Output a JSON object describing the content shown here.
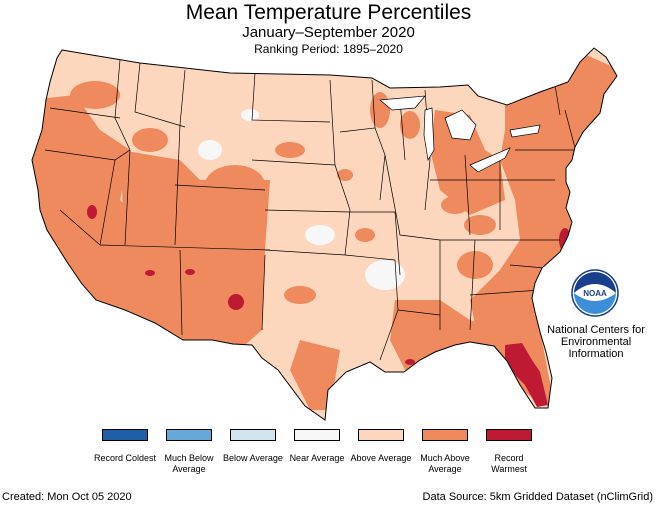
{
  "header": {
    "title": "Mean Temperature Percentiles",
    "subtitle": "January–September 2020",
    "ranking_period": "Ranking Period: 1895–2020"
  },
  "legend": [
    {
      "label": "Record Coldest",
      "color": "#1f5fa6"
    },
    {
      "label": "Much Below Average",
      "color": "#67a9d6"
    },
    {
      "label": "Below Average",
      "color": "#d2e4f0"
    },
    {
      "label": "Near Average",
      "color": "#f7f7f7"
    },
    {
      "label": "Above Average",
      "color": "#fdd7bd"
    },
    {
      "label": "Much Above Average",
      "color": "#ef8a5e"
    },
    {
      "label": "Record Warmest",
      "color": "#bf1a33"
    }
  ],
  "logo": {
    "text": "NOAA",
    "org_line1": "National Centers for",
    "org_line2": "Environmental",
    "org_line3": "Information"
  },
  "footer": {
    "created": "Created: Mon Oct 05 2020",
    "source": "Data Source: 5km Gridded Dataset (nClimGrid)"
  }
}
